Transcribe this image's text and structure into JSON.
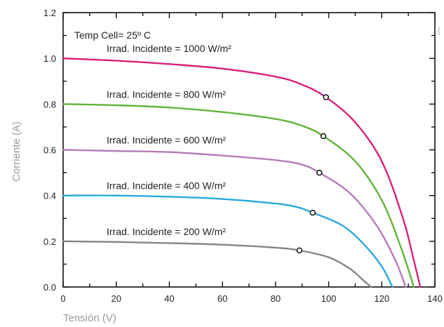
{
  "chart_data": {
    "type": "line",
    "title": "",
    "xlabel": "Tensión (V)",
    "ylabel": "Corriente (A)",
    "xlim": [
      0,
      140
    ],
    "ylim": [
      0,
      1.2
    ],
    "x_ticks": [
      0,
      20,
      40,
      60,
      80,
      100,
      120,
      140
    ],
    "x_tick_labels": [
      "0",
      "20",
      "40",
      "60",
      "80",
      "100",
      "120",
      "140"
    ],
    "y_ticks": [
      0,
      0.2,
      0.4,
      0.6,
      0.8,
      1.0,
      1.2
    ],
    "y_tick_labels": [
      "0.0",
      "0.2",
      "0.4",
      "0.6",
      "0.8",
      "1.0",
      "1.2"
    ],
    "grid": false,
    "legend": "inline labels",
    "temp_label": "Temp Cell= 25º C",
    "edge_mark": "(",
    "series": [
      {
        "name": "Irrad. Incidente = 1000 W/m²",
        "color": "#d8207a",
        "mpp": [
          99,
          0.83
        ],
        "points": [
          [
            0,
            1.0
          ],
          [
            20,
            0.99
          ],
          [
            40,
            0.975
          ],
          [
            60,
            0.955
          ],
          [
            80,
            0.92
          ],
          [
            90,
            0.885
          ],
          [
            99,
            0.83
          ],
          [
            110,
            0.72
          ],
          [
            120,
            0.55
          ],
          [
            128,
            0.3
          ],
          [
            132,
            0.12
          ],
          [
            134.5,
            0
          ]
        ]
      },
      {
        "name": "Irrad. Incidente = 800 W/m²",
        "color": "#62b43a",
        "mpp": [
          98,
          0.66
        ],
        "points": [
          [
            0,
            0.8
          ],
          [
            20,
            0.795
          ],
          [
            40,
            0.785
          ],
          [
            60,
            0.765
          ],
          [
            80,
            0.735
          ],
          [
            90,
            0.705
          ],
          [
            98,
            0.66
          ],
          [
            110,
            0.55
          ],
          [
            120,
            0.38
          ],
          [
            127,
            0.18
          ],
          [
            131,
            0.04
          ],
          [
            132,
            0
          ]
        ]
      },
      {
        "name": "Irrad. Incidente = 600 W/m²",
        "color": "#b87ab8",
        "mpp": [
          96.5,
          0.5
        ],
        "points": [
          [
            0,
            0.6
          ],
          [
            20,
            0.595
          ],
          [
            40,
            0.59
          ],
          [
            60,
            0.575
          ],
          [
            80,
            0.555
          ],
          [
            90,
            0.535
          ],
          [
            96.5,
            0.5
          ],
          [
            108,
            0.41
          ],
          [
            118,
            0.27
          ],
          [
            125,
            0.12
          ],
          [
            129,
            0
          ]
        ]
      },
      {
        "name": "Irrad. Incidente = 400 W/m²",
        "color": "#29a8de",
        "mpp": [
          94,
          0.325
        ],
        "points": [
          [
            0,
            0.4
          ],
          [
            20,
            0.4
          ],
          [
            40,
            0.395
          ],
          [
            60,
            0.385
          ],
          [
            80,
            0.365
          ],
          [
            88,
            0.35
          ],
          [
            94,
            0.325
          ],
          [
            105,
            0.27
          ],
          [
            113,
            0.19
          ],
          [
            120,
            0.09
          ],
          [
            124,
            0
          ]
        ]
      },
      {
        "name": "Irrad. Incidente = 200 W/m²",
        "color": "#858585",
        "mpp": [
          89,
          0.16
        ],
        "points": [
          [
            0,
            0.2
          ],
          [
            20,
            0.197
          ],
          [
            40,
            0.192
          ],
          [
            60,
            0.185
          ],
          [
            80,
            0.172
          ],
          [
            89,
            0.16
          ],
          [
            100,
            0.13
          ],
          [
            108,
            0.08
          ],
          [
            113,
            0.03
          ],
          [
            116,
            0
          ]
        ]
      }
    ]
  }
}
